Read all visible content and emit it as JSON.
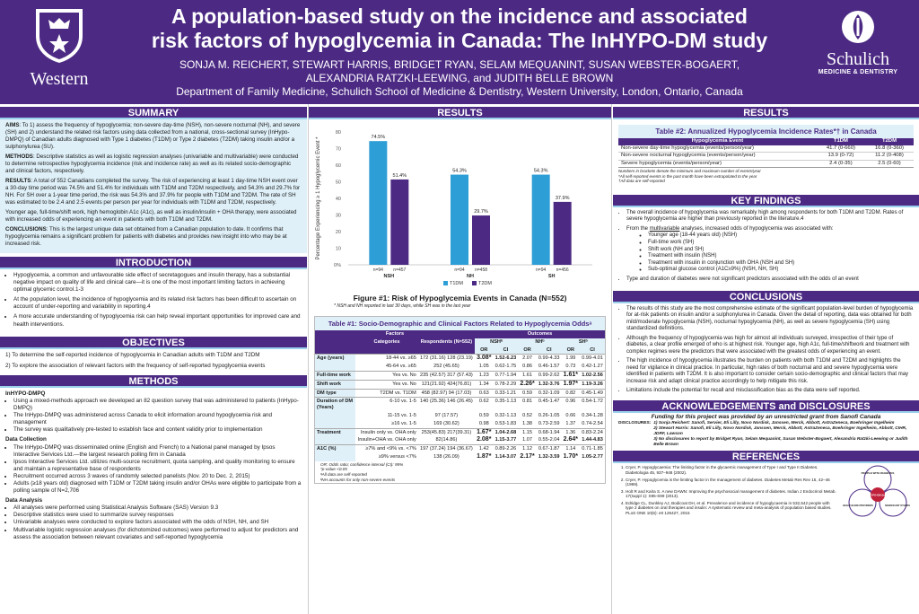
{
  "header": {
    "logo_left": "Western",
    "logo_right": "Schulich",
    "logo_right_sub": "MEDICINE & DENTISTRY",
    "title_line1": "A population-based study on the incidence and associated",
    "title_line2": "risk factors of hypoglycemia in Canada: The InHYPO-DM study",
    "authors_line1": "SONJA M. REICHERT, STEWART HARRIS, BRIDGET RYAN, SELAM MEQUANINT, SUSAN WEBSTER-BOGAERT,",
    "authors_line2": "ALEXANDRIA RATZKI-LEEWING, and JUDITH BELLE BROWN",
    "affiliation": "Department of Family Medicine, Schulich School of Medicine & Dentistry, Western University, London, Ontario, Canada"
  },
  "summary": {
    "heading": "SUMMARY",
    "aims_label": "AIMS",
    "aims": ": To 1) assess the frequency of hypoglycemia; non-severe day-time (NSH), non-severe nocturnal (NH), and severe (SH) and 2) understand the related risk factors using data collected from a national, cross-sectional survey (InHypo-DMPQ) of Canadian adults diagnosed with Type 1 diabetes (T1DM) or Type 2 diabetes (T2DM) taking insulin and/or a sulphonylurea (SU).",
    "methods_label": "METHODS",
    "methods": ": Descriptive statistics as well as logistic regression analyses (univariable and multivariable) were conducted to determine retrospective hypoglycemia incidence (risk and incidence rate) as well as its related socio-demographic and clinical factors, respectively.",
    "results_label": "RESULTS",
    "results": ": A total of 552 Canadians completed the survey. The risk of experiencing at least 1 day-time NSH event over a 30-day time period was 74.5% and 51.4% for individuals with T1DM and T2DM respectively, and 54.3% and 29.7% for NH. For SH over a 1-year time period, the risk was 54.3% and 37.9% for people with T1DM and T2DM. The rate of SH was estimated to be 2.4 and 2.5 events per person per year for individuals with T1DM and T2DM, respectively.",
    "results2": "Younger age, full-time/shift work, high hemoglobin A1c (A1c), as well as insulin/insulin + OHA therapy, were associated with increased odds of experiencing an event in patients with both T1DM and T2DM.",
    "conc_label": "CONCLUSIONS",
    "conc": ": This is the largest unique data set obtained from a Canadian population to date. It confirms that hypoglycemia remains a significant problem for patients with diabetes and provides new insight into who may be at increased risk."
  },
  "introduction": {
    "heading": "INTRODUCTION",
    "bullets": [
      "Hypoglycemia, a common and unfavourable side effect of secretagogues and insulin therapy, has a substantial negative impact on quality of life and clinical care—it is one of the most important limiting factors in achieving optimal glycemic control.1-3",
      "At the population level, the incidence of hypoglycemia and its related risk factors has been difficult to ascertain on account of under-reporting and variability in reporting.4",
      "A more accurate understanding of hypoglycemia risk can help reveal important opportunities for improved care and health interventions."
    ]
  },
  "objectives": {
    "heading": "OBJECTIVES",
    "items": [
      "1) To determine the self-reported incidence of hypoglycemia in Canadian adults with T1DM and T2DM",
      "2) To explore the association of relevant factors with the frequency of self-reported hypoglycemia events"
    ]
  },
  "methods": {
    "heading": "METHODS",
    "sub1": "InHYPO-DMPQ",
    "b1": [
      "Using a mixed-methods approach we developed an 82 question survey that was administered to patients (InHypo-DMPQ)",
      "The InHypo-DMPQ was administered across Canada to elicit information around hypoglycemia risk and management",
      "The survey was qualitatively pre-tested to establish face and content validity prior to implementation"
    ],
    "sub2": "Data Collection",
    "b2": [
      "The InHypo-DMPQ was disseminated online (English and French) to a National panel managed by Ipsos Interactive Services Ltd.—the largest research polling firm in Canada",
      "Ipsos Interactive Services Ltd. utilizes multi-source recruitment, quota sampling, and quality monitoring to ensure and maintain a representative base of respondents",
      "Recruitment occurred across 3 waves of randomly selected panelists (Nov. 20 to Dec. 2, 2015)",
      "Adults (≥18 years old) diagnosed with T1DM or T2DM taking insulin and/or OHAs were eligible to participate from a polling sample of N=2,706"
    ],
    "sub3": "Data Analysis",
    "b3": [
      "All analyses were performed using Statistical Analysis Software (SAS) Version 9.3",
      "Descriptive statistics were used to summarize survey responses",
      "Univariable analyses were conducted to explore factors associated with the odds of NSH, NH, and SH",
      "Multivariable logistic regression analyses (for dichotomized outcomes) were performed to adjust for predictors and assess the association between relevant covariates and self-reported hypoglycemia"
    ]
  },
  "results_mid": {
    "heading": "RESULTS",
    "figure_caption": "Figure #1: Risk of Hypoglycemia Events in Canada (N=552)",
    "figure_note": "* NSH and NH reported in last 30 days, while SH was in the last year"
  },
  "chart_data": {
    "type": "bar",
    "categories": [
      "NSH",
      "NH",
      "SH"
    ],
    "series": [
      {
        "name": "T1DM",
        "values": [
          74.5,
          54.3,
          54.3
        ],
        "n": [
          "n=94",
          "n=94",
          "n=94"
        ],
        "color": "#2e9ed6"
      },
      {
        "name": "T2DM",
        "values": [
          51.4,
          29.7,
          37.9
        ],
        "n": [
          "n=457",
          "n=458",
          "n=456"
        ],
        "color": "#4c2a84"
      }
    ],
    "ylabel": "Percentage Experiencing ≥ 1 Hypoglycemic Event *",
    "ylim": [
      0,
      80
    ],
    "yticks": [
      "0%",
      "10",
      "20",
      "30",
      "40",
      "50",
      "60",
      "70",
      "80"
    ],
    "yticks_values": [
      0,
      10,
      20,
      30,
      40,
      50,
      60,
      70,
      80
    ],
    "data_labels": [
      [
        "74.5%",
        "54.3%",
        "54.3%"
      ],
      [
        "51.4%",
        "29.7%",
        "37.9%"
      ]
    ],
    "legend": "bottom"
  },
  "table1": {
    "title": "Table #1: Socio-Demographic and Clinical Factors Related to Hypoglycemia Oddsᵃ",
    "h_factors": "Factors",
    "h_outcomes": "Outcomes",
    "h_categories": "Categories",
    "h_respondents": "Respondents (N=552)",
    "h_nsh": "NSHᵇ",
    "h_nh": "NHᵇ",
    "h_sh": "SHᵇ",
    "h_or": "OR",
    "h_ci": "CI",
    "groups": [
      {
        "label": "Age (years)",
        "rows": [
          {
            "cat": "18-44 vs. ≥65",
            "n": "172 (31.16) 128 (23.19)",
            "v": [
              "3.08*",
              "1.52-6.23",
              "2.07",
              "0.99-4.33",
              "1.99",
              "0.99-4.01"
            ]
          },
          {
            "cat": "45-64 vs. ≥65",
            "n": "252 (45.65)",
            "v": [
              "1.05",
              "0.62-1.75",
              "0.86",
              "0.46-1.57",
              "0.73",
              "0.42-1.27"
            ]
          }
        ]
      },
      {
        "label": "Full-time work",
        "rows": [
          {
            "cat": "Yes vs. No",
            "n": "235 (42.57) 317 (57.43)",
            "v": [
              "1.23",
              "0.77-1.94",
              "1.61",
              "0.99-2.62",
              "1.61*",
              "1.02-2.56"
            ]
          }
        ]
      },
      {
        "label": "Shift work",
        "rows": [
          {
            "cat": "Yes vs. No",
            "n": "121(21.92) 424(76.81)",
            "v": [
              "1.34",
              "0.78-2.29",
              "2.26*",
              "1.32-3.76",
              "1.97*",
              "1.19-3.26"
            ]
          }
        ]
      },
      {
        "label": "DM type",
        "rows": [
          {
            "cat": "T2DM vs. T1DM",
            "n": "458 (82.97) 94 (17.03)",
            "v": [
              "0.63",
              "0.33-1.21",
              "0.59",
              "0.32-1.09",
              "0.82",
              "0.45-1.49"
            ]
          }
        ]
      },
      {
        "label": "Duration of DM (Years)",
        "rows": [
          {
            "cat": "6-10 vs. 1-5",
            "n": "140 (25.36) 146 (26.45)",
            "v": [
              "0.62",
              "0.35-1.13",
              "0.81",
              "0.45-1.47",
              "0.96",
              "0.54-1.72"
            ]
          },
          {
            "cat": "11-15 vs. 1-5",
            "n": "97 (17.57)",
            "v": [
              "0.59",
              "0.32-1.13",
              "0.52",
              "0.26-1.05",
              "0.66",
              "0.34-1.28"
            ]
          },
          {
            "cat": "≥16 vs. 1-5",
            "n": "169 (30.62)",
            "v": [
              "0.98",
              "0.53-1.83",
              "1.38",
              "0.73-2.59",
              "1.37",
              "0.74-2.54"
            ]
          }
        ]
      },
      {
        "label": "Treatment",
        "rows": [
          {
            "cat": "Insulin only vs. OHA only",
            "n": "253(45.83) 217(39.31)",
            "v": [
              "1.67*",
              "1.04-2.68",
              "1.15",
              "0.68-1.94",
              "1.36",
              "0.83-2.24"
            ]
          },
          {
            "cat": "Insulin+OHA vs. OHA only",
            "n": "82(14.86)",
            "v": [
              "2.08*",
              "1.15-3.77",
              "1.07",
              "0.55-2.04",
              "2.64*",
              "1.44-4.83"
            ]
          }
        ]
      },
      {
        "label": "A1C (%)",
        "rows": [
          {
            "cat": "≥7% and <9% vs. <7%",
            "n": "197 (37.24) 194 (36.67)",
            "v": [
              "1.42",
              "0.89-2.26",
              "1.12",
              "0.67-1.87",
              "1.14",
              "0.71-1.85"
            ]
          },
          {
            "cat": "≥9% versus <7%",
            "n": "138 (26.09)",
            "v": [
              "1.87*",
              "1.14-3.07",
              "2.17*",
              "1.32-3.59",
              "1.70*",
              "1.05-2.77"
            ]
          }
        ]
      }
    ],
    "footnotes": [
      "OR: Odds ratio; confidence interval (CI): 95%",
      "*p-value <0.05",
      "ᵃAll data are self-reported",
      "ᵇNH accounts for only non-severe events"
    ]
  },
  "results_right": {
    "heading": "RESULTS",
    "table2_title": "Table #2: Annualized Hypoglycemia Incidence Rates*† in Canada",
    "t2_headers": [
      "Hypoglycemia Event",
      "T1DM",
      "T2DM"
    ],
    "t2_rows": [
      [
        "Non-severe day-time hypoglycemia (events/person/year)",
        "41.7 (0-660)",
        "16.8 (0-360)"
      ],
      [
        "Non-severe nocturnal hypoglycemia (events/person/year)",
        "13.9 (0-72)",
        "11.2 (0-408)"
      ],
      [
        "Severe hypoglycemia (events/person/year)",
        "2.4 (0-35)",
        "2.5 (0-60)"
      ]
    ],
    "t2_notes": [
      "Numbers in brackets denote the minimum and maximum number of events/year",
      "*All self-reported events in the past month have been extrapolated to the year",
      "†All data are self-reported"
    ]
  },
  "key_findings": {
    "heading": "KEY FINDINGS",
    "b1": "The overall incidence of hypoglycemia was remarkably high among respondents for both T1DM and T2DM. Rates of severe hypoglycemia are higher than previously reported in the literature.4",
    "b2_pre": "From the ",
    "b2_u": "multivariable",
    "b2_post": " analyses, increased odds of hypoglycemia was associated with:",
    "sub": [
      "Younger age (18-44 years old) (NSH)",
      "Full-time work (SH)",
      "Shift work (NH and SH)",
      "Treatment with insulin (NSH)",
      "Treatment with insulin in conjunction with OHA (NSH and SH)",
      "Sub-optimal glucose control (A1C≥9%) (NSH, NH, SH)"
    ],
    "b3": "Type and duration of diabetes were not significant predictors associated with the odds of an event"
  },
  "conclusions": {
    "heading": "CONCLUSIONS",
    "bullets": [
      "The results of this study are the most comprehensive estimate of the significant population-level burden of hypoglycemia for at-risk patients on insulin and/or a sulphonylurea in Canada. Given the detail of reporting, data was obtained for both mild/moderate hypoglycemia (NSH), nocturnal hypoglycemia (NH), as well as severe hypoglycemia (SH) using standardized definitions.",
      "Although the frequency of hypoglycemia was high for almost all individuals surveyed, irrespective of their type of diabetes, a clear profile emerged of who is at highest risk. Younger age, high A1c, full-time/shiftwork and treatment with complex regimes were the predictors that were associated with the greatest odds of experiencing an event.",
      "The high incidence of hypoglycemia illustrates the burden on patients with both T1DM and T2DM and highlights the need for vigilance in clinical practice. In particular, high rates of both nocturnal and and severe hypoglycemia were identified in patients with T2DM. It is also important to consider certain socio-demographic and clinical factors that may increase risk and adapt clinical practice accordingly to help mitigate this risk.",
      "Limitations include the potential for recall and misclassification bias as the data were self reported."
    ]
  },
  "ack": {
    "heading": "ACKNOWLEDGEMENTS and DISCLOSURES",
    "funding": "Funding for this project was provided by an unrestricted grant from Sanofi Canada",
    "disclosures_label": "DISCLOSURES:",
    "d1": "1) Sonja Reichert: Sanofi, Servier, Eli Lilly, Novo Nordisk, Janssen, Merck, Abbott, AstraZeneca, Boehringer Ingelheim",
    "d2": "2) Stewart Harris: Sanofi, Eli Lilly, Novo Nordisk, Janssen, Merck, Abbott, AstraZeneca, Boehringer Ingelheim, Abbott, CIHR, JDRF, Lawson",
    "d3": "3) No disclosures to report by Bridget Ryan, Selam Mequanint, Susan Webster-Bogaert, Alexandria Ratzki-Leewing or Judith Belle Brown"
  },
  "references": {
    "heading": "REFERENCES",
    "items": [
      "Cryer, P. Hypoglycaemia: The limiting factor in the glycaemic management of Type I and Type II Diabetes. Diabetologia 45, 937–948 (2002).",
      "Cryer, P. Hypoglycemia is the limiting factor in the management of diabetes. Diabetes Metab Res Rev 15, 42–46 (1999).",
      "Holt R and Kalra S. A new DAWN: Improving the psychosocial management of diabetes. Indian J Endocrinol Metab. 17(suppl 1): S95-S99 (2013).",
      "Edridge CL, Dunkley AJ, Bodicoat DH, et al. Prevalence and incidence of hypoglycaemia in 532,542 people with type 2 diabetes on oral therapies and insulin: A systematic review and meta-analysis of population based studies. PLoS ONE 10(6): e0 126427, 2015"
    ],
    "diagram_center": "InHYPO-DM Study",
    "diagram_top": "PEOPLE WITH DIABETES",
    "diagram_left": "HEALTHCARE PROVIDERS",
    "diagram_right": "SIGNIFICANT OTHERS"
  }
}
